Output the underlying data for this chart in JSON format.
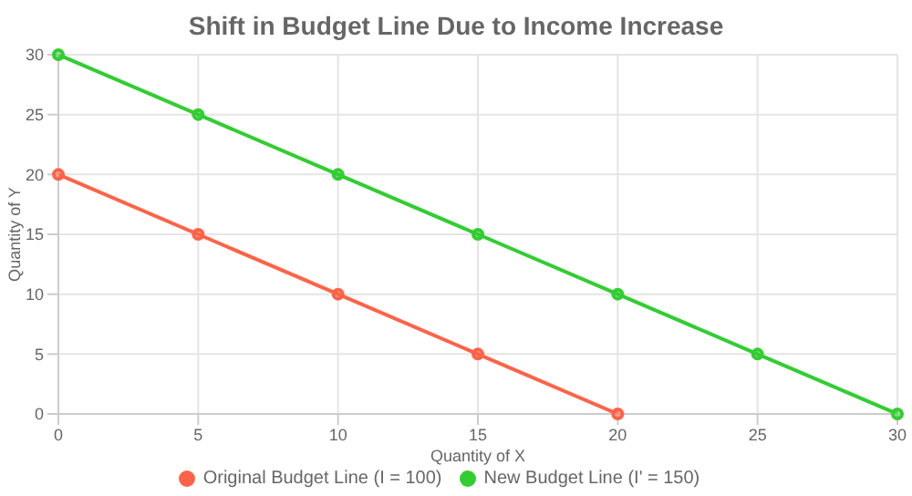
{
  "chart_data": {
    "type": "line",
    "title": "Shift in Budget Line Due to Income Increase",
    "xlabel": "Quantity of X",
    "ylabel": "Quantity of Y",
    "series": [
      {
        "name": "Original Budget Line (I = 100)",
        "color": "#ff6347",
        "x": [
          0,
          5,
          10,
          15,
          20
        ],
        "values": [
          20,
          15,
          10,
          5,
          0
        ]
      },
      {
        "name": "New Budget Line (I' = 150)",
        "color": "#32cd32",
        "x": [
          0,
          5,
          10,
          15,
          20,
          25,
          30
        ],
        "values": [
          30,
          25,
          20,
          15,
          10,
          5,
          0
        ]
      }
    ],
    "xlim": [
      0,
      30
    ],
    "xticks": [
      0,
      5,
      10,
      15,
      20,
      25,
      30
    ],
    "ylim": [
      0,
      30
    ],
    "yticks": [
      0,
      5,
      10,
      15,
      20,
      25,
      30
    ],
    "grid": true,
    "legend": "bottom",
    "marker": "circle",
    "line_style": "solid"
  }
}
